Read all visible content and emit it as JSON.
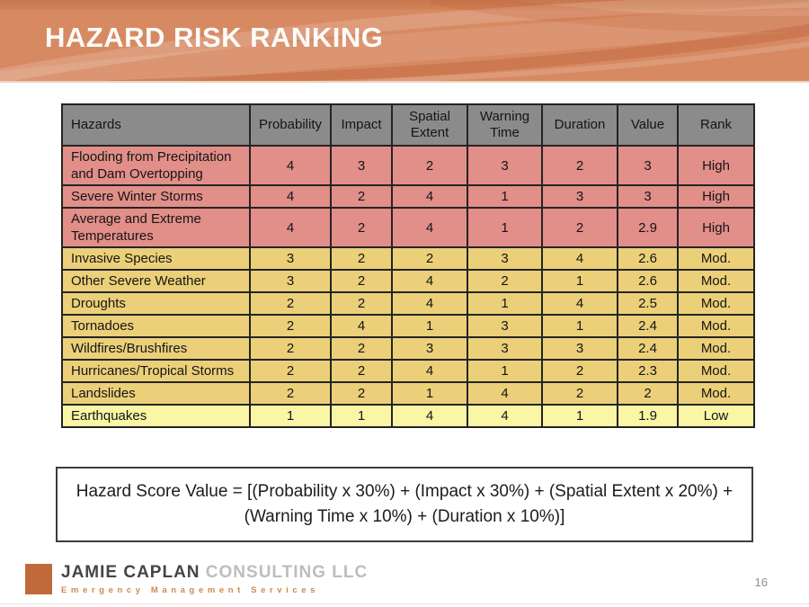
{
  "slide": {
    "title": "HAZARD RISK RANKING",
    "page_number": "16"
  },
  "table": {
    "columns": [
      "Hazards",
      "Probability",
      "Impact",
      "Spatial Extent",
      "Warning Time",
      "Duration",
      "Value",
      "Rank"
    ],
    "rows": [
      {
        "hazard": "Flooding from Precipitation and Dam Overtopping",
        "probability": "4",
        "impact": "3",
        "spatial_extent": "2",
        "warning_time": "3",
        "duration": "2",
        "value": "3",
        "rank": "High",
        "level": "high"
      },
      {
        "hazard": "Severe Winter Storms",
        "probability": "4",
        "impact": "2",
        "spatial_extent": "4",
        "warning_time": "1",
        "duration": "3",
        "value": "3",
        "rank": "High",
        "level": "high"
      },
      {
        "hazard": "Average and Extreme Temperatures",
        "probability": "4",
        "impact": "2",
        "spatial_extent": "4",
        "warning_time": "1",
        "duration": "2",
        "value": "2.9",
        "rank": "High",
        "level": "high"
      },
      {
        "hazard": "Invasive Species",
        "probability": "3",
        "impact": "2",
        "spatial_extent": "2",
        "warning_time": "3",
        "duration": "4",
        "value": "2.6",
        "rank": "Mod.",
        "level": "moderate"
      },
      {
        "hazard": "Other Severe Weather",
        "probability": "3",
        "impact": "2",
        "spatial_extent": "4",
        "warning_time": "2",
        "duration": "1",
        "value": "2.6",
        "rank": "Mod.",
        "level": "moderate"
      },
      {
        "hazard": "Droughts",
        "probability": "2",
        "impact": "2",
        "spatial_extent": "4",
        "warning_time": "1",
        "duration": "4",
        "value": "2.5",
        "rank": "Mod.",
        "level": "moderate"
      },
      {
        "hazard": "Tornadoes",
        "probability": "2",
        "impact": "4",
        "spatial_extent": "1",
        "warning_time": "3",
        "duration": "1",
        "value": "2.4",
        "rank": "Mod.",
        "level": "moderate"
      },
      {
        "hazard": "Wildfires/Brushfires",
        "probability": "2",
        "impact": "2",
        "spatial_extent": "3",
        "warning_time": "3",
        "duration": "3",
        "value": "2.4",
        "rank": "Mod.",
        "level": "moderate"
      },
      {
        "hazard": "Hurricanes/Tropical Storms",
        "probability": "2",
        "impact": "2",
        "spatial_extent": "4",
        "warning_time": "1",
        "duration": "2",
        "value": "2.3",
        "rank": "Mod.",
        "level": "moderate"
      },
      {
        "hazard": "Landslides",
        "probability": "2",
        "impact": "2",
        "spatial_extent": "1",
        "warning_time": "4",
        "duration": "2",
        "value": "2",
        "rank": "Mod.",
        "level": "moderate"
      },
      {
        "hazard": "Earthquakes",
        "probability": "1",
        "impact": "1",
        "spatial_extent": "4",
        "warning_time": "4",
        "duration": "1",
        "value": "1.9",
        "rank": "Low",
        "level": "low"
      }
    ]
  },
  "formula": {
    "line1": "Hazard Score Value = [(Probability x 30%) + (Impact x 30%) + (Spatial Extent x 20%) +",
    "line2": "(Warning Time x 10%) + (Duration x 10%)]"
  },
  "footer": {
    "company_primary": "JAMIE CAPLAN",
    "company_secondary": "CONSULTING LLC",
    "tagline": "Emergency Management Services"
  },
  "colors": {
    "banner_orange": "#d78a62",
    "banner_stripe": "#c8774e",
    "header_gray": "#8b8b8b",
    "high_pink": "#e28e89",
    "moderate_gold": "#ebd079",
    "low_yellow": "#f9f6a5",
    "footer_square_orange": "#c2693c",
    "tagline_orange": "#cd8a4c"
  }
}
